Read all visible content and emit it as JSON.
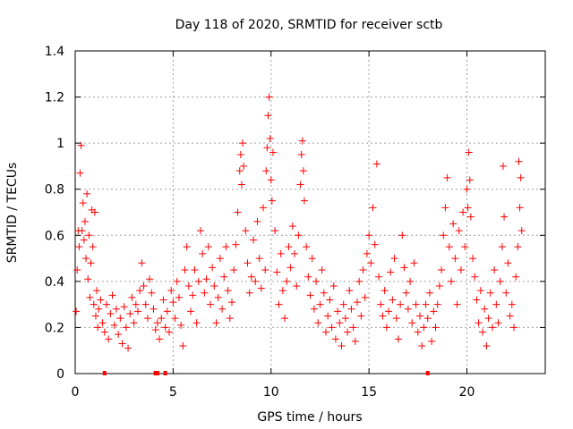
{
  "chart_data": {
    "type": "scatter",
    "title": "Day 118 of 2020, SRMTID for receiver sctb",
    "xlabel": "GPS time / hours",
    "ylabel": "SRMTID / TECUs",
    "xlim": [
      0,
      24
    ],
    "ylim": [
      0,
      1.4
    ],
    "xticks": [
      0,
      5,
      10,
      15,
      20
    ],
    "yticks": [
      0,
      0.2,
      0.4,
      0.6,
      0.8,
      1,
      1.2,
      1.4
    ],
    "xtick_labels": [
      "0",
      "5",
      "10",
      "15",
      "20"
    ],
    "ytick_labels": [
      "0",
      "0.2",
      "0.4",
      "0.6",
      "0.8",
      "1",
      "1.2",
      "1.4"
    ],
    "grid": true,
    "marker": "plus",
    "color": "#ff0000",
    "series": [
      {
        "name": "SRMTID",
        "points": [
          [
            0.05,
            0.27
          ],
          [
            0.1,
            0.45
          ],
          [
            0.15,
            0.62
          ],
          [
            0.2,
            0.55
          ],
          [
            0.25,
            0.87
          ],
          [
            0.3,
            0.99
          ],
          [
            0.35,
            0.62
          ],
          [
            0.4,
            0.74
          ],
          [
            0.45,
            0.58
          ],
          [
            0.5,
            0.66
          ],
          [
            0.55,
            0.5
          ],
          [
            0.6,
            0.78
          ],
          [
            0.65,
            0.41
          ],
          [
            0.7,
            0.6
          ],
          [
            0.75,
            0.33
          ],
          [
            0.8,
            0.48
          ],
          [
            0.85,
            0.71
          ],
          [
            0.9,
            0.55
          ],
          [
            0.95,
            0.3
          ],
          [
            1.0,
            0.7
          ],
          [
            1.05,
            0.25
          ],
          [
            1.1,
            0.36
          ],
          [
            1.15,
            0.2
          ],
          [
            1.2,
            0.28
          ],
          [
            1.3,
            0.32
          ],
          [
            1.4,
            0.22
          ],
          [
            1.5,
            0.18
          ],
          [
            1.6,
            0.3
          ],
          [
            1.7,
            0.15
          ],
          [
            1.8,
            0.26
          ],
          [
            1.9,
            0.34
          ],
          [
            2.0,
            0.21
          ],
          [
            2.1,
            0.28
          ],
          [
            2.2,
            0.17
          ],
          [
            2.3,
            0.24
          ],
          [
            2.4,
            0.13
          ],
          [
            2.5,
            0.29
          ],
          [
            2.6,
            0.2
          ],
          [
            2.7,
            0.11
          ],
          [
            2.8,
            0.26
          ],
          [
            2.9,
            0.33
          ],
          [
            3.0,
            0.22
          ],
          [
            3.1,
            0.3
          ],
          [
            3.2,
            0.27
          ],
          [
            3.3,
            0.36
          ],
          [
            3.4,
            0.48
          ],
          [
            3.5,
            0.38
          ],
          [
            3.6,
            0.3
          ],
          [
            3.7,
            0.24
          ],
          [
            3.8,
            0.41
          ],
          [
            3.9,
            0.35
          ],
          [
            4.0,
            0.28
          ],
          [
            4.1,
            0.19
          ],
          [
            4.2,
            0.22
          ],
          [
            4.3,
            0.15
          ],
          [
            4.4,
            0.24
          ],
          [
            4.5,
            0.32
          ],
          [
            4.6,
            0.2
          ],
          [
            4.7,
            0.27
          ],
          [
            4.8,
            0.18
          ],
          [
            4.9,
            0.36
          ],
          [
            5.0,
            0.31
          ],
          [
            5.1,
            0.24
          ],
          [
            5.2,
            0.4
          ],
          [
            5.3,
            0.33
          ],
          [
            5.4,
            0.21
          ],
          [
            5.5,
            0.12
          ],
          [
            5.6,
            0.45
          ],
          [
            5.7,
            0.55
          ],
          [
            5.8,
            0.38
          ],
          [
            5.9,
            0.27
          ],
          [
            6.0,
            0.34
          ],
          [
            6.1,
            0.45
          ],
          [
            6.2,
            0.22
          ],
          [
            6.3,
            0.4
          ],
          [
            6.4,
            0.62
          ],
          [
            6.5,
            0.52
          ],
          [
            6.6,
            0.35
          ],
          [
            6.7,
            0.41
          ],
          [
            6.8,
            0.55
          ],
          [
            6.9,
            0.3
          ],
          [
            7.0,
            0.46
          ],
          [
            7.1,
            0.38
          ],
          [
            7.2,
            0.22
          ],
          [
            7.3,
            0.33
          ],
          [
            7.4,
            0.5
          ],
          [
            7.5,
            0.28
          ],
          [
            7.6,
            0.42
          ],
          [
            7.7,
            0.55
          ],
          [
            7.8,
            0.36
          ],
          [
            7.9,
            0.24
          ],
          [
            8.0,
            0.31
          ],
          [
            8.1,
            0.45
          ],
          [
            8.2,
            0.56
          ],
          [
            8.3,
            0.7
          ],
          [
            8.4,
            0.88
          ],
          [
            8.45,
            0.95
          ],
          [
            8.5,
            0.82
          ],
          [
            8.55,
            1.0
          ],
          [
            8.6,
            0.9
          ],
          [
            8.7,
            0.62
          ],
          [
            8.8,
            0.48
          ],
          [
            8.9,
            0.35
          ],
          [
            9.0,
            0.42
          ],
          [
            9.1,
            0.58
          ],
          [
            9.2,
            0.4
          ],
          [
            9.3,
            0.66
          ],
          [
            9.4,
            0.5
          ],
          [
            9.5,
            0.37
          ],
          [
            9.6,
            0.72
          ],
          [
            9.7,
            0.45
          ],
          [
            9.75,
            0.88
          ],
          [
            9.8,
            0.98
          ],
          [
            9.85,
            1.12
          ],
          [
            9.9,
            1.2
          ],
          [
            9.95,
            1.02
          ],
          [
            10.0,
            0.84
          ],
          [
            10.05,
            0.75
          ],
          [
            10.1,
            0.96
          ],
          [
            10.2,
            0.62
          ],
          [
            10.3,
            0.44
          ],
          [
            10.4,
            0.3
          ],
          [
            10.5,
            0.52
          ],
          [
            10.6,
            0.36
          ],
          [
            10.7,
            0.24
          ],
          [
            10.8,
            0.4
          ],
          [
            10.9,
            0.55
          ],
          [
            11.0,
            0.46
          ],
          [
            11.1,
            0.64
          ],
          [
            11.2,
            0.52
          ],
          [
            11.3,
            0.38
          ],
          [
            11.4,
            0.6
          ],
          [
            11.5,
            0.82
          ],
          [
            11.55,
            0.95
          ],
          [
            11.6,
            1.01
          ],
          [
            11.65,
            0.88
          ],
          [
            11.7,
            0.75
          ],
          [
            11.8,
            0.55
          ],
          [
            11.9,
            0.42
          ],
          [
            12.0,
            0.34
          ],
          [
            12.1,
            0.5
          ],
          [
            12.2,
            0.28
          ],
          [
            12.3,
            0.4
          ],
          [
            12.4,
            0.22
          ],
          [
            12.5,
            0.3
          ],
          [
            12.6,
            0.45
          ],
          [
            12.7,
            0.35
          ],
          [
            12.8,
            0.18
          ],
          [
            12.9,
            0.25
          ],
          [
            13.0,
            0.32
          ],
          [
            13.1,
            0.2
          ],
          [
            13.2,
            0.38
          ],
          [
            13.3,
            0.15
          ],
          [
            13.4,
            0.27
          ],
          [
            13.5,
            0.22
          ],
          [
            13.6,
            0.12
          ],
          [
            13.7,
            0.3
          ],
          [
            13.8,
            0.24
          ],
          [
            13.9,
            0.18
          ],
          [
            14.0,
            0.36
          ],
          [
            14.1,
            0.28
          ],
          [
            14.2,
            0.2
          ],
          [
            14.3,
            0.14
          ],
          [
            14.4,
            0.31
          ],
          [
            14.5,
            0.4
          ],
          [
            14.6,
            0.25
          ],
          [
            14.7,
            0.45
          ],
          [
            14.8,
            0.33
          ],
          [
            14.9,
            0.52
          ],
          [
            15.0,
            0.6
          ],
          [
            15.1,
            0.48
          ],
          [
            15.2,
            0.72
          ],
          [
            15.3,
            0.56
          ],
          [
            15.4,
            0.91
          ],
          [
            15.5,
            0.42
          ],
          [
            15.6,
            0.3
          ],
          [
            15.7,
            0.25
          ],
          [
            15.8,
            0.36
          ],
          [
            15.9,
            0.2
          ],
          [
            16.0,
            0.27
          ],
          [
            16.1,
            0.44
          ],
          [
            16.2,
            0.32
          ],
          [
            16.3,
            0.5
          ],
          [
            16.4,
            0.24
          ],
          [
            16.5,
            0.15
          ],
          [
            16.6,
            0.3
          ],
          [
            16.7,
            0.6
          ],
          [
            16.8,
            0.46
          ],
          [
            16.9,
            0.35
          ],
          [
            17.0,
            0.28
          ],
          [
            17.1,
            0.4
          ],
          [
            17.2,
            0.22
          ],
          [
            17.3,
            0.48
          ],
          [
            17.4,
            0.3
          ],
          [
            17.5,
            0.18
          ],
          [
            17.6,
            0.25
          ],
          [
            17.7,
            0.12
          ],
          [
            17.8,
            0.2
          ],
          [
            17.9,
            0.3
          ],
          [
            18.0,
            0.24
          ],
          [
            18.1,
            0.35
          ],
          [
            18.2,
            0.14
          ],
          [
            18.3,
            0.27
          ],
          [
            18.4,
            0.2
          ],
          [
            18.5,
            0.3
          ],
          [
            18.6,
            0.38
          ],
          [
            18.7,
            0.45
          ],
          [
            18.8,
            0.6
          ],
          [
            18.9,
            0.72
          ],
          [
            19.0,
            0.85
          ],
          [
            19.1,
            0.55
          ],
          [
            19.2,
            0.4
          ],
          [
            19.3,
            0.65
          ],
          [
            19.4,
            0.5
          ],
          [
            19.5,
            0.3
          ],
          [
            19.6,
            0.62
          ],
          [
            19.7,
            0.45
          ],
          [
            19.8,
            0.7
          ],
          [
            19.9,
            0.55
          ],
          [
            20.0,
            0.8
          ],
          [
            20.05,
            0.72
          ],
          [
            20.1,
            0.96
          ],
          [
            20.15,
            0.84
          ],
          [
            20.2,
            0.68
          ],
          [
            20.3,
            0.5
          ],
          [
            20.4,
            0.42
          ],
          [
            20.5,
            0.32
          ],
          [
            20.6,
            0.22
          ],
          [
            20.7,
            0.36
          ],
          [
            20.8,
            0.18
          ],
          [
            20.9,
            0.28
          ],
          [
            21.0,
            0.12
          ],
          [
            21.1,
            0.24
          ],
          [
            21.2,
            0.35
          ],
          [
            21.3,
            0.2
          ],
          [
            21.4,
            0.45
          ],
          [
            21.5,
            0.3
          ],
          [
            21.6,
            0.22
          ],
          [
            21.7,
            0.4
          ],
          [
            21.8,
            0.55
          ],
          [
            21.85,
            0.9
          ],
          [
            21.9,
            0.68
          ],
          [
            22.0,
            0.35
          ],
          [
            22.1,
            0.48
          ],
          [
            22.2,
            0.25
          ],
          [
            22.3,
            0.3
          ],
          [
            22.4,
            0.2
          ],
          [
            22.5,
            0.42
          ],
          [
            22.6,
            0.55
          ],
          [
            22.65,
            0.92
          ],
          [
            22.7,
            0.72
          ],
          [
            22.75,
            0.85
          ],
          [
            22.8,
            0.62
          ]
        ]
      }
    ],
    "zero_markers": [
      1.5,
      4.1,
      4.2,
      4.6,
      18.0
    ]
  }
}
